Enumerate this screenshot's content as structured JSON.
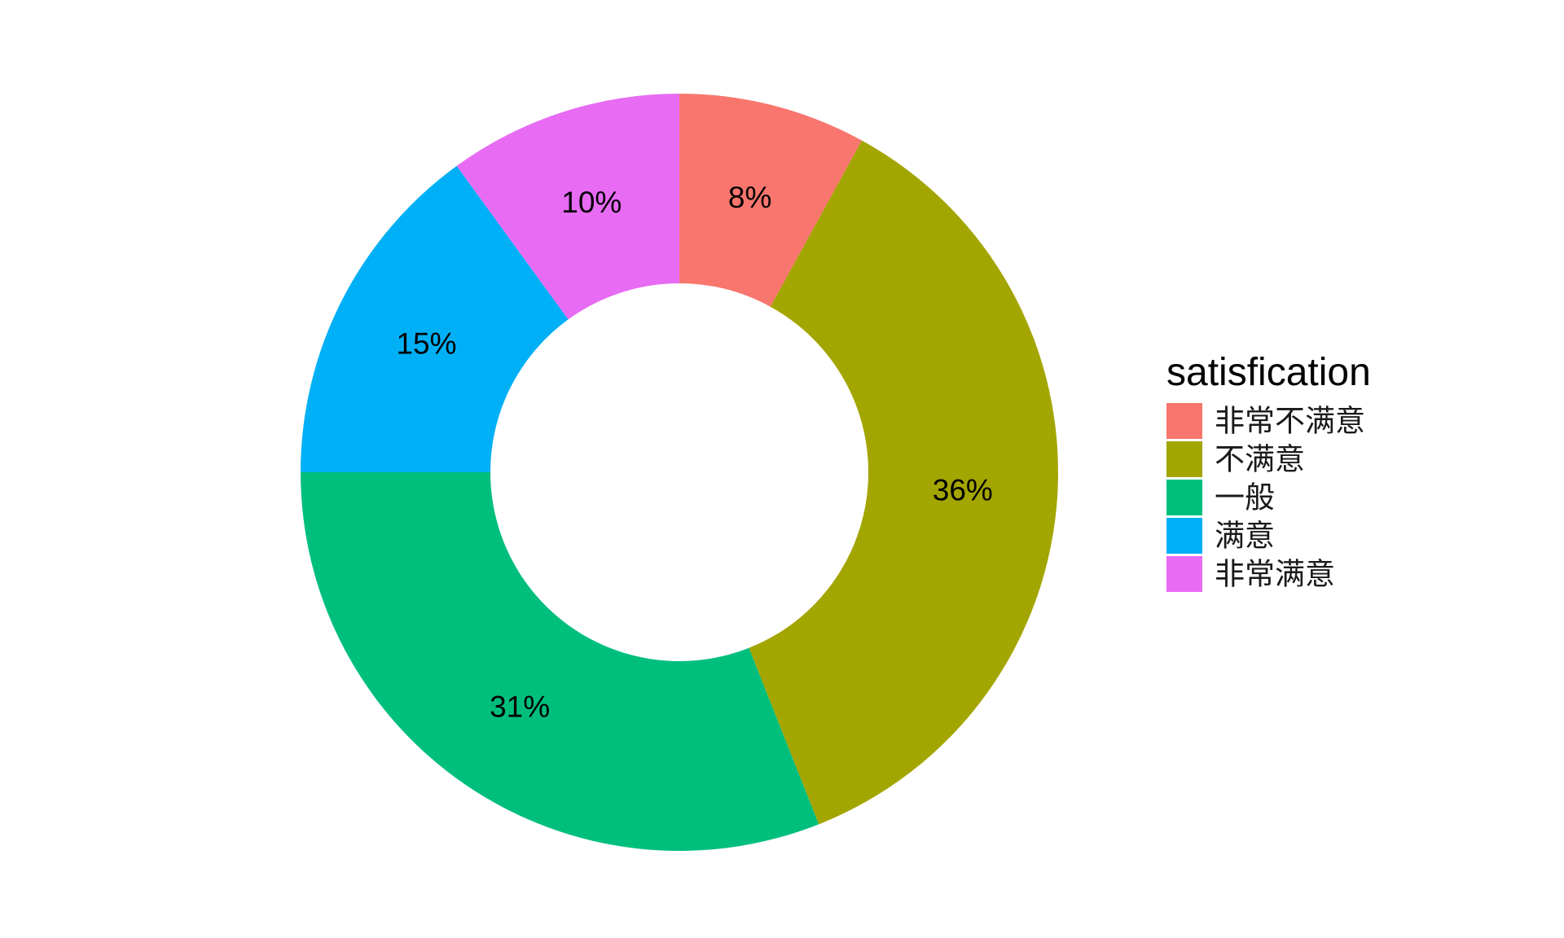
{
  "chart_data": {
    "type": "pie",
    "donut": true,
    "title": "",
    "legend_title": "satisfication",
    "legend_position": "right",
    "categories": [
      "非常不满意",
      "不满意",
      "一般",
      "满意",
      "非常满意"
    ],
    "values": [
      8,
      36,
      31,
      15,
      10
    ],
    "labels": [
      "8%",
      "36%",
      "31%",
      "15%",
      "10%"
    ],
    "colors": [
      "#F8766D",
      "#A3A500",
      "#00BF7D",
      "#00B0F6",
      "#E76BF3"
    ],
    "start_angle": "12 o'clock",
    "direction": "clockwise",
    "background": "#ffffff"
  }
}
